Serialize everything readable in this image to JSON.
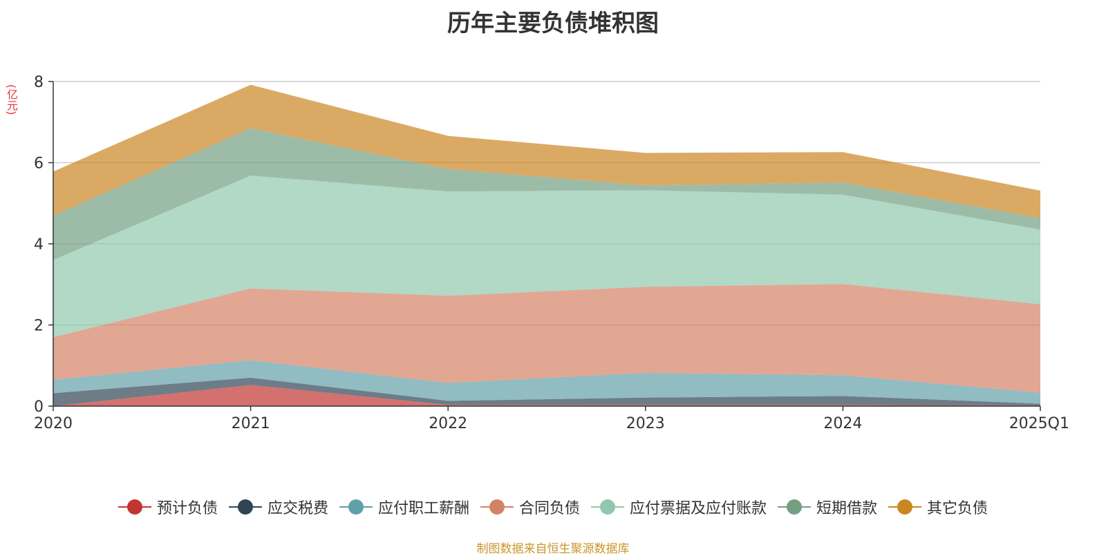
{
  "chart_data": {
    "type": "area",
    "stacked": true,
    "title": "历年主要负债堆积图",
    "ylabel": "(亿元)",
    "xlabel": "",
    "categories": [
      "2020",
      "2021",
      "2022",
      "2023",
      "2024",
      "2025Q1"
    ],
    "ylim": [
      0,
      8
    ],
    "yticks": [
      0,
      2,
      4,
      6,
      8
    ],
    "grid": true,
    "legend_position": "bottom",
    "series": [
      {
        "name": "预计负债",
        "color": "#c23531",
        "values": [
          0.0,
          0.52,
          0.03,
          0.03,
          0.03,
          0.02
        ]
      },
      {
        "name": "应交税费",
        "color": "#2f4554",
        "values": [
          0.32,
          0.18,
          0.1,
          0.18,
          0.22,
          0.04
        ]
      },
      {
        "name": "应付职工薪酬",
        "color": "#61a0a8",
        "values": [
          0.33,
          0.43,
          0.44,
          0.61,
          0.51,
          0.27
        ]
      },
      {
        "name": "合同负债",
        "color": "#d48265",
        "values": [
          1.05,
          1.77,
          2.15,
          2.12,
          2.25,
          2.18
        ]
      },
      {
        "name": "应付票据及应付账款",
        "color": "#91c7ae",
        "values": [
          1.9,
          2.78,
          2.57,
          2.38,
          2.2,
          1.84
        ]
      },
      {
        "name": "短期借款",
        "color": "#749f83",
        "values": [
          1.09,
          1.17,
          0.55,
          0.12,
          0.3,
          0.28
        ]
      },
      {
        "name": "其它负债",
        "color": "#ca8622",
        "values": [
          1.09,
          1.07,
          0.82,
          0.8,
          0.75,
          0.68
        ]
      }
    ]
  },
  "source_note": "制图数据来自恒生聚源数据库"
}
